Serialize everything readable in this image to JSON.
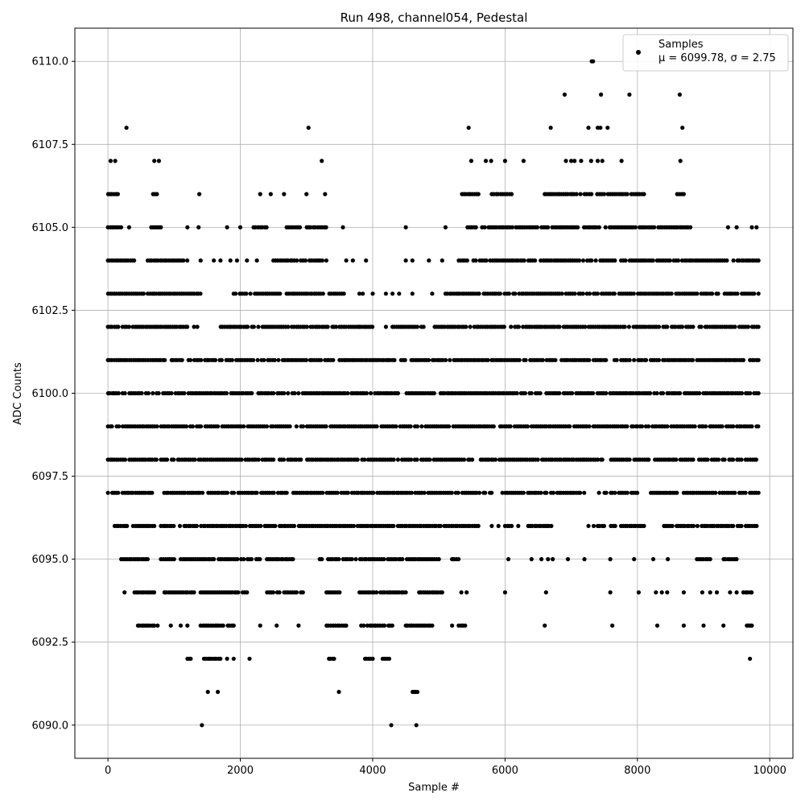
{
  "chart_data": {
    "type": "scatter",
    "title": "Run 498, channel054, Pedestal",
    "xlabel": "Sample #",
    "ylabel": "ADC Counts",
    "xlim": [
      -500,
      10350
    ],
    "ylim": [
      6089.0,
      6111.0
    ],
    "xticks": [
      0,
      2000,
      4000,
      6000,
      8000,
      10000
    ],
    "xtick_labels": [
      "0",
      "2000",
      "4000",
      "6000",
      "8000",
      "10000"
    ],
    "yticks": [
      6090.0,
      6092.5,
      6095.0,
      6097.5,
      6100.0,
      6102.5,
      6105.0,
      6107.5,
      6110.0
    ],
    "ytick_labels": [
      "6090.0",
      "6092.5",
      "6095.0",
      "6097.5",
      "6100.0",
      "6102.5",
      "6105.0",
      "6107.5",
      "6110.0"
    ],
    "grid": true,
    "marker_color": "#000000",
    "legend": {
      "placement": "top-right",
      "entries": [
        {
          "label": "Samples",
          "sublabel": "μ = 6099.78, σ = 2.75"
        }
      ]
    },
    "series": [
      {
        "name": "Samples",
        "x_range": [
          0,
          9830
        ],
        "levels": [
          {
            "y": 6110,
            "segments": [
              [
                7310,
                7330
              ]
            ]
          },
          {
            "y": 6109,
            "isolated": [
              6900,
              7450,
              7880,
              8640
            ]
          },
          {
            "y": 6108,
            "isolated": [
              280,
              3030,
              5450,
              6690,
              7260,
              7400,
              7440,
              7550,
              8680
            ]
          },
          {
            "y": 6107,
            "isolated": [
              40,
              110,
              700,
              770,
              3230,
              5490,
              5710,
              5790,
              6000,
              6280,
              6920,
              7000,
              7050,
              7150,
              7300,
              7400,
              7470,
              7760,
              8650
            ]
          },
          {
            "y": 6106,
            "segments": [
              [
                0,
                150
              ],
              [
                680,
                740
              ],
              [
                5350,
                5600
              ],
              [
                5800,
                6100
              ],
              [
                6600,
                8100
              ],
              [
                8600,
                8700
              ]
            ],
            "isolated": [
              1380,
              2300,
              2460,
              2660,
              3000,
              3280
            ]
          },
          {
            "y": 6105,
            "segments": [
              [
                0,
                200
              ],
              [
                650,
                800
              ],
              [
                2200,
                2400
              ],
              [
                2700,
                2900
              ],
              [
                3000,
                3300
              ],
              [
                5400,
                8800
              ]
            ],
            "isolated": [
              320,
              1200,
              1370,
              1800,
              2000,
              3550,
              4500,
              5100,
              9370,
              9500,
              9730,
              9800
            ]
          },
          {
            "y": 6104,
            "segments": [
              [
                0,
                400
              ],
              [
                600,
                1200
              ],
              [
                2500,
                3300
              ],
              [
                5300,
                9830
              ]
            ],
            "isolated": [
              1400,
              1600,
              1700,
              1850,
              1950,
              2100,
              2250,
              3600,
              3700,
              3900,
              4500,
              4600,
              4850,
              5050
            ]
          },
          {
            "y": 6103,
            "segments": [
              [
                0,
                1400
              ],
              [
                1900,
                2600
              ],
              [
                2700,
                3600
              ],
              [
                5100,
                9830
              ]
            ],
            "isolated": [
              3800,
              3850,
              4000,
              4200,
              4300,
              4400,
              4600,
              4900
            ]
          },
          {
            "y": 6102,
            "segments": [
              [
                0,
                1200
              ],
              [
                1700,
                3450
              ],
              [
                3500,
                3800
              ],
              [
                3800,
                4000
              ],
              [
                4300,
                4800
              ],
              [
                4900,
                9830
              ]
            ],
            "isolated": [
              1300,
              1350,
              4200
            ]
          },
          {
            "y": 6101,
            "segments": [
              [
                0,
                1500
              ],
              [
                1500,
                3500
              ],
              [
                3500,
                9830
              ]
            ]
          },
          {
            "y": 6100,
            "segments": [
              [
                0,
                9830
              ]
            ]
          },
          {
            "y": 6099,
            "segments": [
              [
                0,
                9830
              ]
            ]
          },
          {
            "y": 6098,
            "segments": [
              [
                0,
                7200
              ],
              [
                7200,
                7400
              ],
              [
                7600,
                9830
              ]
            ],
            "isolated": [
              5950,
              7450,
              7470
            ]
          },
          {
            "y": 6097,
            "segments": [
              [
                0,
                700
              ],
              [
                850,
                5800
              ],
              [
                6000,
                7200
              ],
              [
                7500,
                8000
              ],
              [
                8200,
                8600
              ],
              [
                8700,
                9830
              ]
            ],
            "isolated": [
              5960,
              7420
            ]
          },
          {
            "y": 6096,
            "segments": [
              [
                100,
                700
              ],
              [
                800,
                5600
              ],
              [
                6000,
                6100
              ],
              [
                6350,
                6700
              ],
              [
                7400,
                7500
              ],
              [
                7600,
                8100
              ],
              [
                8400,
                9830
              ]
            ],
            "isolated": [
              5800,
              5900,
              6200,
              7260,
              7340
            ]
          },
          {
            "y": 6095,
            "segments": [
              [
                200,
                600
              ],
              [
                800,
                1000
              ],
              [
                1100,
                2300
              ],
              [
                2400,
                2800
              ],
              [
                3200,
                5000
              ],
              [
                5200,
                5300
              ],
              [
                8900,
                9100
              ],
              [
                9300,
                9500
              ]
            ],
            "isolated": [
              6050,
              6400,
              6550,
              6650,
              6720,
              6950,
              7200,
              7590,
              7950,
              8240,
              8460
            ]
          },
          {
            "y": 6094,
            "segments": [
              [
                400,
                700
              ],
              [
                850,
                1300
              ],
              [
                1400,
                2100
              ],
              [
                2400,
                2950
              ],
              [
                3300,
                3500
              ],
              [
                3800,
                4500
              ],
              [
                4700,
                5050
              ],
              [
                9600,
                9730
              ]
            ],
            "isolated": [
              250,
              5340,
              5420,
              6000,
              6620,
              7590,
              8020,
              8280,
              8370,
              8450,
              8700,
              8980,
              9100,
              9200,
              9400,
              9500
            ]
          },
          {
            "y": 6093,
            "segments": [
              [
                450,
                700
              ],
              [
                1400,
                1900
              ],
              [
                3300,
                3600
              ],
              [
                3800,
                4300
              ],
              [
                4500,
                4900
              ],
              [
                5300,
                5400
              ],
              [
                9650,
                9730
              ]
            ],
            "isolated": [
              750,
              950,
              1100,
              1200,
              2300,
              2550,
              2880,
              5200,
              6600,
              7620,
              8300,
              8700,
              9000,
              9300
            ]
          },
          {
            "y": 6092,
            "segments": [
              [
                1200,
                1250
              ],
              [
                1450,
                1700
              ],
              [
                3340,
                3420
              ],
              [
                3880,
                4000
              ],
              [
                4150,
                4250
              ]
            ],
            "isolated": [
              1800,
              1900,
              2140,
              9700
            ]
          },
          {
            "y": 6091,
            "segments": [
              [
                4600,
                4680
              ]
            ],
            "isolated": [
              1510,
              1660,
              3490
            ]
          },
          {
            "y": 6090,
            "isolated": [
              1420,
              4280,
              4660
            ]
          }
        ]
      }
    ]
  }
}
